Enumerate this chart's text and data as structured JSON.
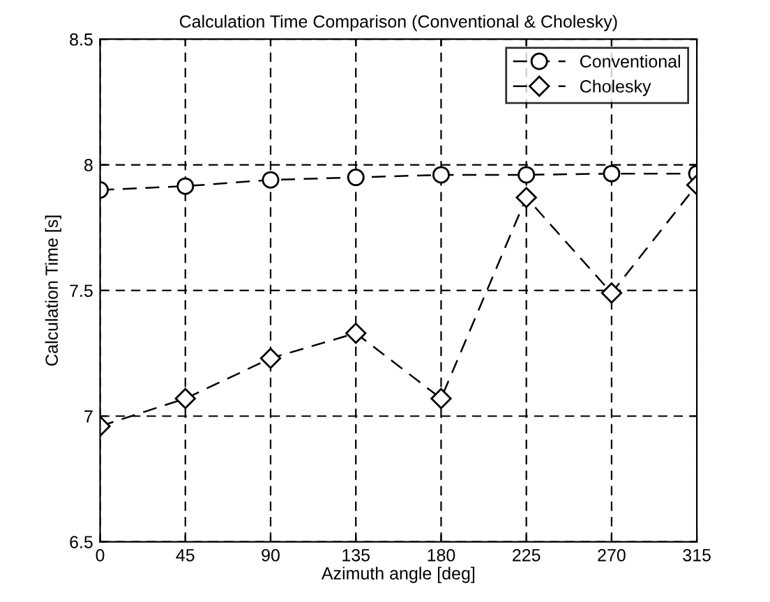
{
  "chart_data": {
    "type": "line",
    "title": "Calculation Time Comparison (Conventional & Cholesky)",
    "xlabel": "Azimuth angle [deg]",
    "ylabel": "Calculation Time [s]",
    "x": [
      0,
      45,
      90,
      135,
      180,
      225,
      270,
      315
    ],
    "series": [
      {
        "name": "Conventional",
        "color": "#000000",
        "marker": "circle",
        "values": [
          7.9,
          7.915,
          7.94,
          7.95,
          7.96,
          7.96,
          7.965,
          7.965
        ]
      },
      {
        "name": "Cholesky",
        "color": "#000000",
        "marker": "diamond",
        "values": [
          6.96,
          7.07,
          7.23,
          7.33,
          7.07,
          7.87,
          7.49,
          7.92
        ]
      }
    ],
    "xlim": [
      0,
      315
    ],
    "ylim": [
      6.5,
      8.5
    ],
    "xticks": [
      0,
      45,
      90,
      135,
      180,
      225,
      270,
      315
    ],
    "yticks": [
      6.5,
      7,
      7.5,
      8,
      8.5
    ],
    "grid": true,
    "legend": "top right",
    "line_style": "dashed"
  }
}
